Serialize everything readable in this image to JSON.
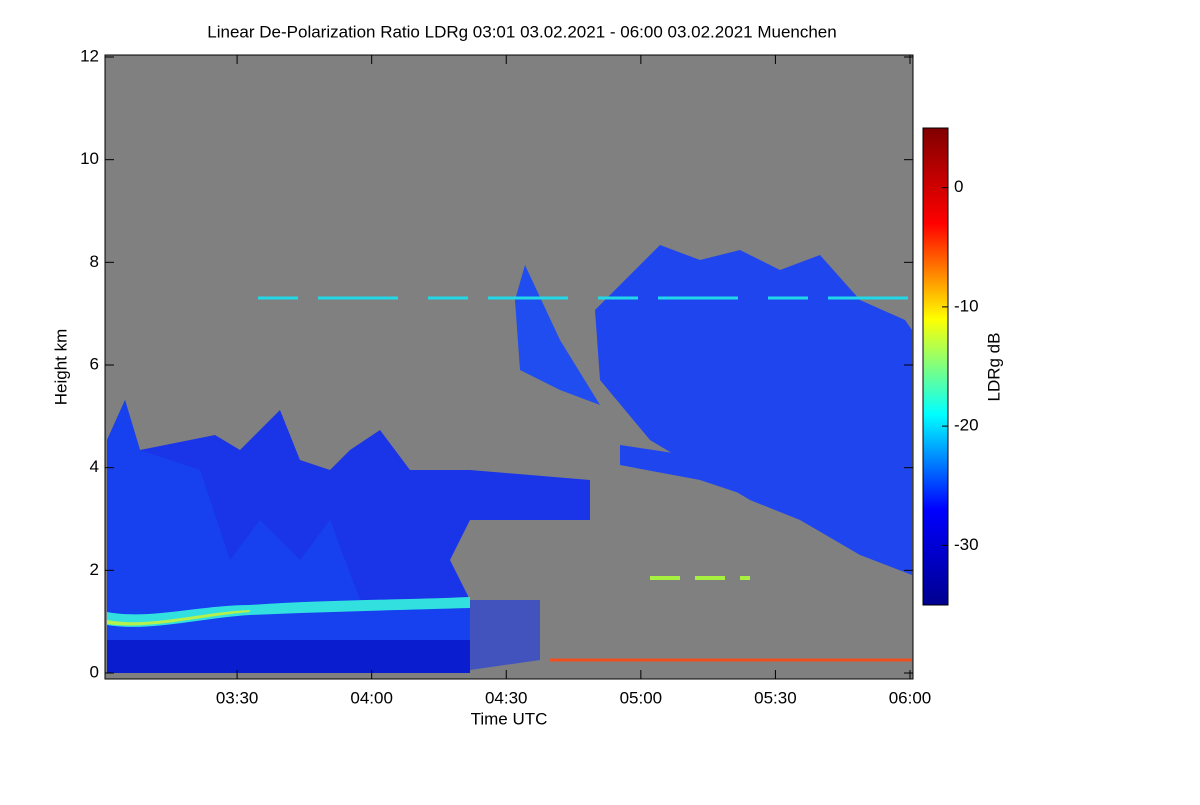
{
  "chart_data": {
    "type": "heatmap",
    "title": "Linear De-Polarization Ratio LDRg   03:01 03.02.2021 - 06:00 03.02.2021 Muenchen",
    "x_label": "Time UTC",
    "y_label": "Height km",
    "colorbar_label": "LDRg dB",
    "xlim": [
      181,
      360
    ],
    "xticks": [
      {
        "value": 210,
        "label": "03:30"
      },
      {
        "value": 240,
        "label": "04:00"
      },
      {
        "value": 270,
        "label": "04:30"
      },
      {
        "value": 300,
        "label": "05:00"
      },
      {
        "value": 330,
        "label": "05:30"
      },
      {
        "value": 360,
        "label": "06:00"
      }
    ],
    "ylim": [
      0,
      12
    ],
    "yticks": [
      0,
      2,
      4,
      6,
      8,
      10,
      12
    ],
    "zlim": [
      -35,
      5
    ],
    "zticks": [
      -30,
      -20,
      -10,
      0
    ],
    "colormap": [
      "#00008f",
      "#0000ff",
      "#00ffff",
      "#ffff00",
      "#ff0000",
      "#800000"
    ],
    "background_color": "#808080"
  }
}
